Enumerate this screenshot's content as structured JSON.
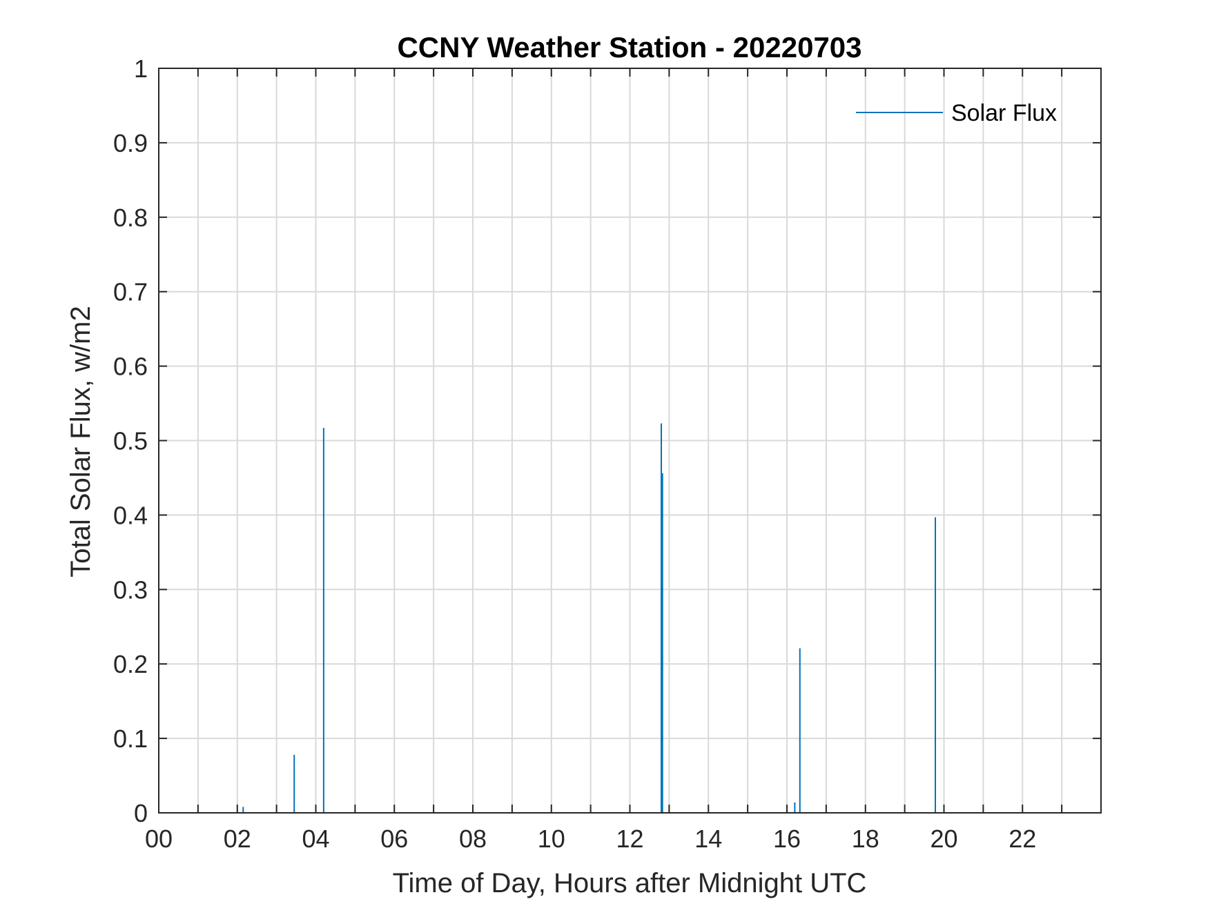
{
  "chart_data": {
    "type": "line",
    "title": "CCNY Weather Station - 20220703",
    "xlabel": "Time of Day, Hours after Midnight UTC",
    "ylabel": "Total Solar Flux, w/m2",
    "xlim": [
      0,
      24
    ],
    "ylim": [
      0,
      1
    ],
    "x_ticks": [
      0,
      2,
      4,
      6,
      8,
      10,
      12,
      14,
      16,
      18,
      20,
      22
    ],
    "x_tick_labels": [
      "00",
      "02",
      "04",
      "06",
      "08",
      "10",
      "12",
      "14",
      "16",
      "18",
      "20",
      "22"
    ],
    "y_ticks": [
      0,
      0.1,
      0.2,
      0.3,
      0.4,
      0.5,
      0.6,
      0.7,
      0.8,
      0.9,
      1
    ],
    "y_tick_labels": [
      "0",
      "0.1",
      "0.2",
      "0.3",
      "0.4",
      "0.5",
      "0.6",
      "0.7",
      "0.8",
      "0.9",
      "1"
    ],
    "grid": true,
    "legend_position": "top-right",
    "series": [
      {
        "name": "Solar Flux",
        "color": "#0072BD",
        "spikes": [
          {
            "x": 2.15,
            "y": 0.008
          },
          {
            "x": 3.45,
            "y": 0.078
          },
          {
            "x": 4.2,
            "y": 0.517
          },
          {
            "x": 12.8,
            "y": 0.523
          },
          {
            "x": 12.83,
            "y": 0.456
          },
          {
            "x": 16.2,
            "y": 0.014
          },
          {
            "x": 16.33,
            "y": 0.221
          },
          {
            "x": 19.78,
            "y": 0.397
          }
        ]
      }
    ]
  }
}
